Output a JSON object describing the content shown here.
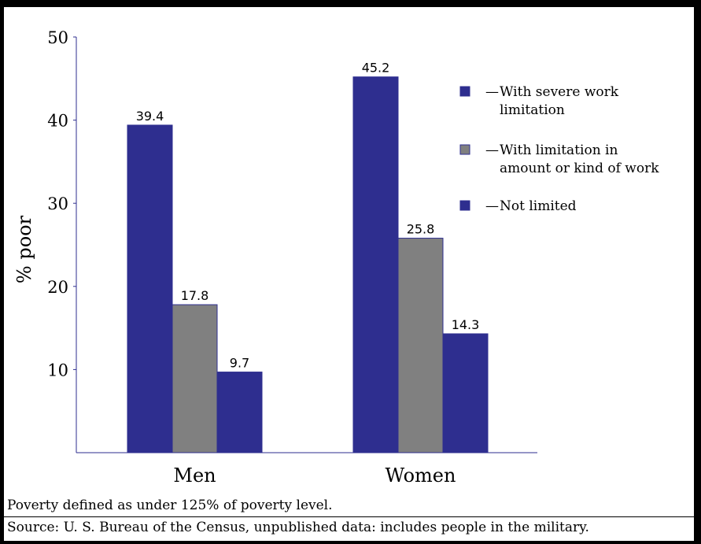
{
  "chart_data": {
    "type": "bar",
    "categories": [
      "Men",
      "Women"
    ],
    "series": [
      {
        "name": "With severe work limitation",
        "values": [
          39.4,
          45.2
        ],
        "color": "#2e2e8f"
      },
      {
        "name": "With limitation in amount or kind of work",
        "values": [
          17.8,
          25.8
        ],
        "color": "#808080"
      },
      {
        "name": "Not limited",
        "values": [
          9.7,
          14.3
        ],
        "color": "#2e2e8f"
      }
    ],
    "data_labels": [
      [
        "39.4",
        "45.2"
      ],
      [
        "17.8",
        "25.8"
      ],
      [
        "9.7",
        "14.3"
      ]
    ],
    "ylabel": "% poor",
    "xlabel": "",
    "ylim": [
      0,
      50
    ],
    "yticks": [
      10,
      20,
      30,
      40,
      50
    ],
    "ytick_labels": [
      "10",
      "20",
      "30",
      "40",
      "50"
    ],
    "legend_position": "top-right",
    "legend": [
      {
        "prefix": "—",
        "lines": [
          "With severe work",
          "limitation"
        ]
      },
      {
        "prefix": "—",
        "lines": [
          "With limitation in",
          "amount or kind of work"
        ]
      },
      {
        "prefix": "—",
        "lines": [
          "Not limited"
        ]
      }
    ],
    "grid": false
  },
  "notes": {
    "definition": "Poverty defined as under 125% of poverty level.",
    "source": "Source:  U. S. Bureau of the Census,  unpublished data:  includes people in the military."
  }
}
